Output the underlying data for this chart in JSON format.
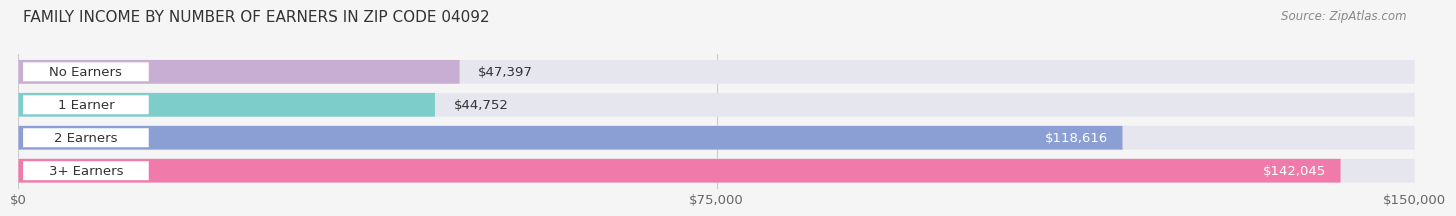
{
  "title": "FAMILY INCOME BY NUMBER OF EARNERS IN ZIP CODE 04092",
  "source": "Source: ZipAtlas.com",
  "categories": [
    "No Earners",
    "1 Earner",
    "2 Earners",
    "3+ Earners"
  ],
  "values": [
    47397,
    44752,
    118616,
    142045
  ],
  "bar_colors": [
    "#c9aed4",
    "#7dceca",
    "#8b9fd4",
    "#f07aaa"
  ],
  "bar_bg_color": "#e6e6ef",
  "xlim": [
    0,
    150000
  ],
  "xtick_labels": [
    "$0",
    "$75,000",
    "$150,000"
  ],
  "value_labels": [
    "$47,397",
    "$44,752",
    "$118,616",
    "$142,045"
  ],
  "value_label_colors": [
    "#333333",
    "#333333",
    "#ffffff",
    "#ffffff"
  ],
  "label_fontsize": 9.5,
  "title_fontsize": 11,
  "source_fontsize": 8.5,
  "background_color": "#f5f5f5",
  "pill_bg_color": "#ffffff",
  "bar_gap": 0.18,
  "bar_height": 0.72
}
